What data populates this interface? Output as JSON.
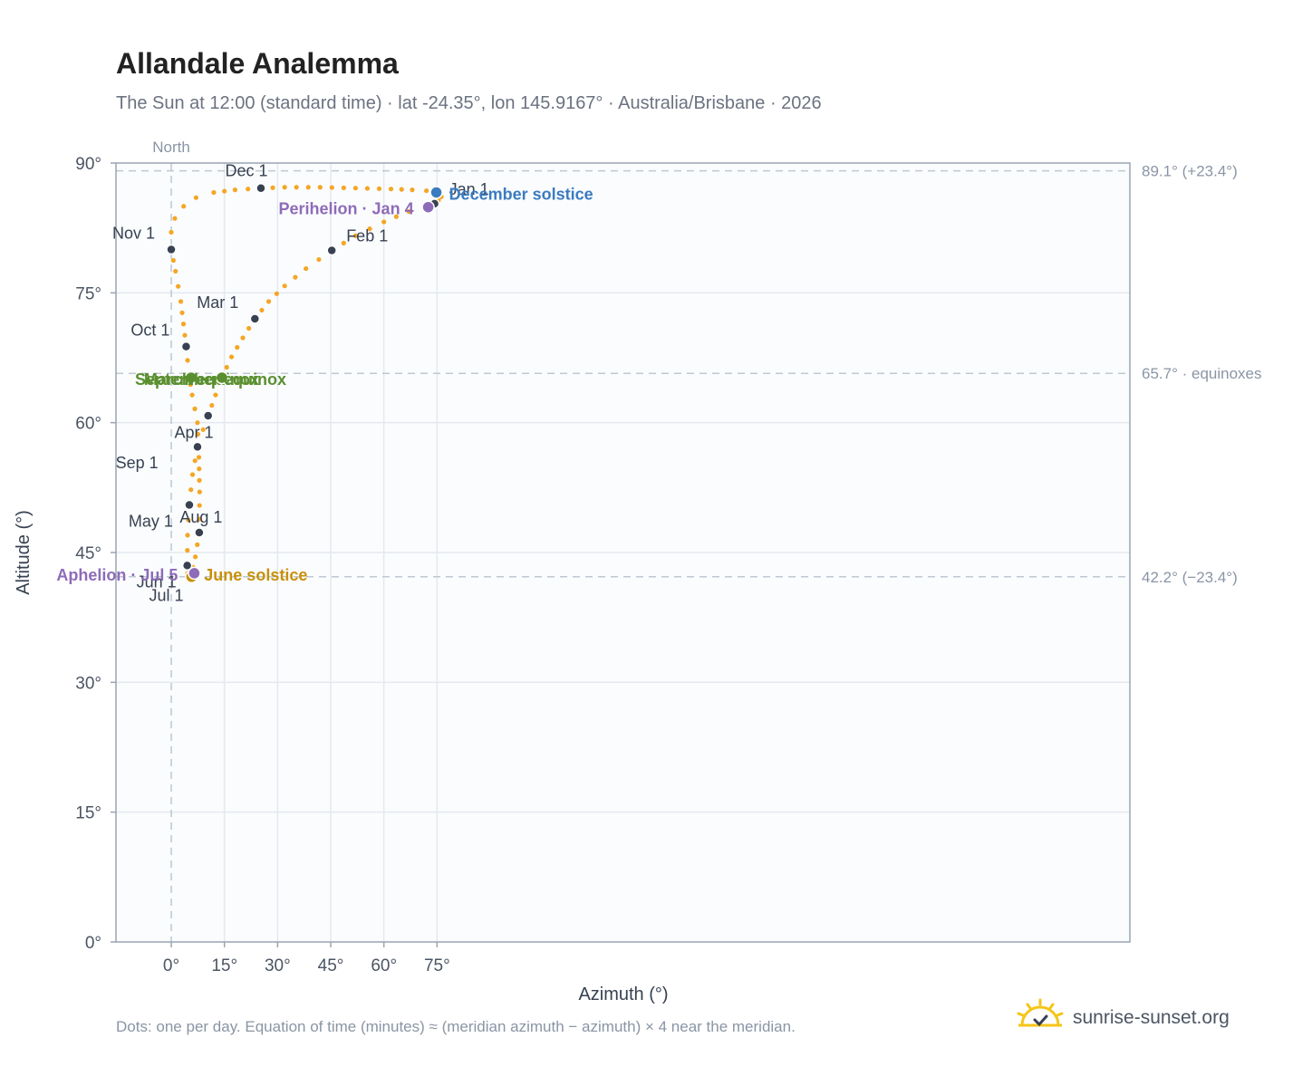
{
  "header": {
    "title": "Allandale Analemma",
    "subtitle": "The Sun at 12:00 (standard time) · lat -24.35°, lon 145.9167° · Australia/Brisbane · 2026"
  },
  "footer": {
    "note": "Dots: one per day. Equation of time (minutes) ≈ (meridian azimuth − azimuth) × 4 near the meridian.",
    "brand": "sunrise-sunset.org"
  },
  "colors": {
    "path": "#f5a623",
    "month_marker": "#374151",
    "equinox": "#5a8f2f",
    "december_solstice": "#3b7bbf",
    "june_solstice": "#c8900a",
    "apsides": "#8e6bb8",
    "reference_line": "#c0c8d2",
    "plot_background": "#fafcfe"
  },
  "chart_data": {
    "type": "scatter",
    "title": "Allandale Analemma",
    "xlabel": "Azimuth (°)",
    "ylabel": "Altitude (°)",
    "xlim": [
      -15.6,
      270.5
    ],
    "ylim": [
      0,
      90
    ],
    "x_axis_note": "values in degrees clockwise from North (shown as 0° at the meridian)",
    "xticks": [
      {
        "value": 0,
        "label": "0°"
      },
      {
        "value": 15,
        "label": "15°"
      },
      {
        "value": 30,
        "label": "30°"
      },
      {
        "value": 45,
        "label": "45°"
      },
      {
        "value": 60,
        "label": "60°"
      },
      {
        "value": 75,
        "label": "75°"
      }
    ],
    "yticks": [
      {
        "value": 0,
        "label": "0°"
      },
      {
        "value": 15,
        "label": "15°"
      },
      {
        "value": 30,
        "label": "30°"
      },
      {
        "value": 45,
        "label": "45°"
      },
      {
        "value": 60,
        "label": "60°"
      },
      {
        "value": 75,
        "label": "75°"
      },
      {
        "value": 90,
        "label": "90°"
      }
    ],
    "meridian": {
      "azimuth": 0,
      "label": "North"
    },
    "reference_lines": [
      {
        "altitude": 89.1,
        "label": "89.1° (+23.4°)"
      },
      {
        "altitude": 65.7,
        "label": "65.7° · equinoxes"
      },
      {
        "altitude": 42.2,
        "label": "42.2° (−23.4°)"
      }
    ],
    "month_markers": [
      {
        "label": "Jan 1",
        "azimuth": 74.3,
        "altitude": 85.3
      },
      {
        "label": "Feb 1",
        "azimuth": 45.3,
        "altitude": 79.9
      },
      {
        "label": "Mar 1",
        "azimuth": 23.6,
        "altitude": 72.0
      },
      {
        "label": "Apr 1",
        "azimuth": 7.4,
        "altitude": 57.2
      },
      {
        "label": "May 1",
        "azimuth": 5.1,
        "altitude": 50.5
      },
      {
        "label": "Jun 1",
        "azimuth": 4.5,
        "altitude": 43.5
      },
      {
        "label": "Jul 1",
        "azimuth": 5.5,
        "altitude": 42.1
      },
      {
        "label": "Aug 1",
        "azimuth": 7.9,
        "altitude": 47.3
      },
      {
        "label": "Sep 1",
        "azimuth": 10.4,
        "altitude": 60.8
      },
      {
        "label": "Oct 1",
        "azimuth": 4.2,
        "altitude": 68.8
      },
      {
        "label": "Nov 1",
        "azimuth": 0.0,
        "altitude": 80.0
      },
      {
        "label": "Dec 1",
        "azimuth": 25.3,
        "altitude": 87.1
      }
    ],
    "events": [
      {
        "label": "December solstice",
        "azimuth": 74.8,
        "altitude": 86.6,
        "color": "#3b7bbf"
      },
      {
        "label": "Perihelion · Jan 4",
        "azimuth": 72.5,
        "altitude": 84.9,
        "color": "#8e6bb8"
      },
      {
        "label": "March equinox",
        "azimuth": 5.6,
        "altitude": 65.2,
        "color": "#5a8f2f"
      },
      {
        "label": "September equinox",
        "azimuth": 14.3,
        "altitude": 65.2,
        "color": "#5a8f2f"
      },
      {
        "label": "June solstice",
        "azimuth": 5.7,
        "altitude": 42.2,
        "color": "#c8900a"
      },
      {
        "label": "Aphelion · Jul 5",
        "azimuth": 6.5,
        "altitude": 42.6,
        "color": "#8e6bb8"
      }
    ],
    "daily_path": [
      [
        74.3,
        85.3
      ],
      [
        75.4,
        85.7
      ],
      [
        76.2,
        86.1
      ],
      [
        75.0,
        86.5
      ],
      [
        72.0,
        86.8
      ],
      [
        68.0,
        86.9
      ],
      [
        62.0,
        87.0
      ],
      [
        52.0,
        87.1
      ],
      [
        42.0,
        87.2
      ],
      [
        32.0,
        87.2
      ],
      [
        25.3,
        87.1
      ],
      [
        18.0,
        86.9
      ],
      [
        12.0,
        86.6
      ],
      [
        7.0,
        86.0
      ],
      [
        3.5,
        85.0
      ],
      [
        1.0,
        83.6
      ],
      [
        0.0,
        82.0
      ],
      [
        0.0,
        80.0
      ],
      [
        1.2,
        77.5
      ],
      [
        2.7,
        74.0
      ],
      [
        4.2,
        68.8
      ],
      [
        5.0,
        65.6
      ],
      [
        5.9,
        63.2
      ],
      [
        7.4,
        60.0
      ],
      [
        7.8,
        56.0
      ],
      [
        8.0,
        52.0
      ],
      [
        7.9,
        47.3
      ],
      [
        6.8,
        44.5
      ],
      [
        5.5,
        42.1
      ],
      [
        4.6,
        42.6
      ],
      [
        4.5,
        43.5
      ],
      [
        4.6,
        47.0
      ],
      [
        5.1,
        50.5
      ],
      [
        6.0,
        54.0
      ],
      [
        7.4,
        57.2
      ],
      [
        9.0,
        59.2
      ],
      [
        10.4,
        60.8
      ],
      [
        12.5,
        63.2
      ],
      [
        14.3,
        65.2
      ],
      [
        17.0,
        67.6
      ],
      [
        20.2,
        69.8
      ],
      [
        23.6,
        72.0
      ],
      [
        27.5,
        74.0
      ],
      [
        32.0,
        75.8
      ],
      [
        38.0,
        77.8
      ],
      [
        45.3,
        79.9
      ],
      [
        52.0,
        81.6
      ],
      [
        60.0,
        83.2
      ],
      [
        67.0,
        84.4
      ],
      [
        72.0,
        85.0
      ],
      [
        74.3,
        85.3
      ]
    ]
  }
}
